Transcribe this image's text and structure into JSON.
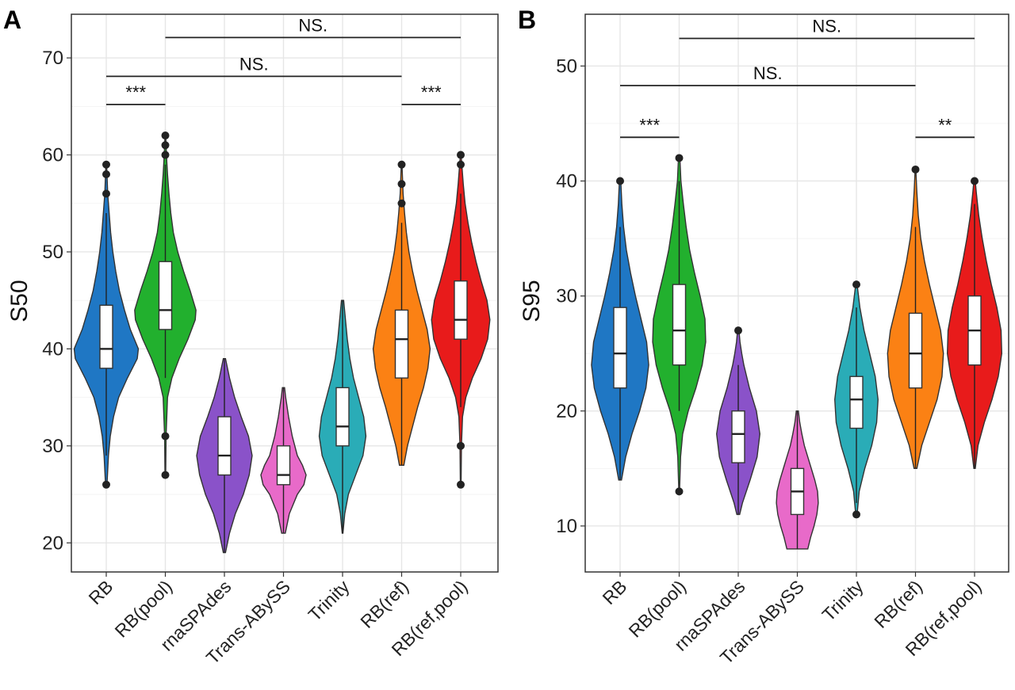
{
  "chart_data": [
    {
      "type": "violin",
      "panel_label": "A",
      "title": "",
      "xlabel": "",
      "ylabel": "S50",
      "ylim": [
        17,
        74.5
      ],
      "yticks": [
        20,
        30,
        40,
        50,
        60,
        70
      ],
      "grid": true,
      "categories": [
        "RB",
        "RB(pool)",
        "rnaSPAdes",
        "Trans-ABySS",
        "Trinity",
        "RB(ref)",
        "RB(ref,pool)"
      ],
      "colors": [
        "#1f77c4",
        "#22b02e",
        "#8a52c9",
        "#e86ac9",
        "#2aacb7",
        "#fb8114",
        "#e81b1b"
      ],
      "series": [
        {
          "min": 26,
          "max": 59,
          "q1": 38,
          "median": 40,
          "q3": 44.5,
          "whisker_low": 29,
          "whisker_high": 54,
          "outliers": [
            26,
            56,
            58,
            59
          ],
          "density": [
            [
              26,
              0.02
            ],
            [
              29,
              0.06
            ],
            [
              31,
              0.11
            ],
            [
              33,
              0.2
            ],
            [
              35,
              0.34
            ],
            [
              37,
              0.58
            ],
            [
              39,
              0.85
            ],
            [
              40,
              0.88
            ],
            [
              42,
              0.66
            ],
            [
              44,
              0.5
            ],
            [
              46,
              0.36
            ],
            [
              48,
              0.26
            ],
            [
              50,
              0.18
            ],
            [
              52,
              0.12
            ],
            [
              54,
              0.08
            ],
            [
              56,
              0.04
            ],
            [
              58,
              0.02
            ],
            [
              59,
              0.01
            ]
          ]
        },
        {
          "min": 27,
          "max": 62,
          "q1": 42,
          "median": 44,
          "q3": 49,
          "whisker_low": 37,
          "whisker_high": 59,
          "outliers": [
            27,
            31,
            60,
            61,
            62
          ],
          "density": [
            [
              27,
              0.01
            ],
            [
              31,
              0.02
            ],
            [
              35,
              0.06
            ],
            [
              37,
              0.18
            ],
            [
              39,
              0.38
            ],
            [
              41,
              0.62
            ],
            [
              43,
              0.82
            ],
            [
              44,
              0.84
            ],
            [
              46,
              0.68
            ],
            [
              48,
              0.5
            ],
            [
              50,
              0.34
            ],
            [
              52,
              0.22
            ],
            [
              54,
              0.15
            ],
            [
              56,
              0.1
            ],
            [
              58,
              0.06
            ],
            [
              60,
              0.03
            ],
            [
              62,
              0.01
            ]
          ]
        },
        {
          "min": 19,
          "max": 39,
          "q1": 27,
          "median": 29,
          "q3": 33,
          "whisker_low": 19,
          "whisker_high": 39,
          "outliers": [],
          "density": [
            [
              19,
              0.03
            ],
            [
              21,
              0.14
            ],
            [
              23,
              0.3
            ],
            [
              25,
              0.52
            ],
            [
              27,
              0.68
            ],
            [
              29,
              0.76
            ],
            [
              31,
              0.66
            ],
            [
              33,
              0.46
            ],
            [
              35,
              0.28
            ],
            [
              37,
              0.14
            ],
            [
              39,
              0.03
            ]
          ]
        },
        {
          "min": 21,
          "max": 36,
          "q1": 26,
          "median": 27,
          "q3": 30,
          "whisker_low": 21,
          "whisker_high": 36,
          "outliers": [],
          "density": [
            [
              21,
              0.05
            ],
            [
              23,
              0.16
            ],
            [
              25,
              0.38
            ],
            [
              26,
              0.56
            ],
            [
              27,
              0.62
            ],
            [
              28,
              0.52
            ],
            [
              29,
              0.38
            ],
            [
              31,
              0.24
            ],
            [
              33,
              0.14
            ],
            [
              35,
              0.06
            ],
            [
              36,
              0.03
            ]
          ]
        },
        {
          "min": 21,
          "max": 45,
          "q1": 30,
          "median": 32,
          "q3": 36,
          "whisker_low": 21,
          "whisker_high": 45,
          "outliers": [],
          "density": [
            [
              21,
              0.01
            ],
            [
              23,
              0.06
            ],
            [
              25,
              0.16
            ],
            [
              27,
              0.36
            ],
            [
              29,
              0.56
            ],
            [
              31,
              0.64
            ],
            [
              33,
              0.58
            ],
            [
              35,
              0.44
            ],
            [
              37,
              0.3
            ],
            [
              39,
              0.2
            ],
            [
              41,
              0.13
            ],
            [
              43,
              0.08
            ],
            [
              45,
              0.03
            ]
          ]
        },
        {
          "min": 28,
          "max": 59,
          "q1": 37,
          "median": 41,
          "q3": 44,
          "whisker_low": 28,
          "whisker_high": 53,
          "outliers": [
            55,
            57,
            59
          ],
          "density": [
            [
              28,
              0.06
            ],
            [
              30,
              0.16
            ],
            [
              32,
              0.3
            ],
            [
              34,
              0.44
            ],
            [
              36,
              0.6
            ],
            [
              38,
              0.72
            ],
            [
              40,
              0.78
            ],
            [
              42,
              0.7
            ],
            [
              44,
              0.56
            ],
            [
              46,
              0.42
            ],
            [
              48,
              0.3
            ],
            [
              50,
              0.2
            ],
            [
              52,
              0.13
            ],
            [
              54,
              0.08
            ],
            [
              56,
              0.04
            ],
            [
              58,
              0.02
            ],
            [
              59,
              0.01
            ]
          ]
        },
        {
          "min": 26,
          "max": 60,
          "q1": 41,
          "median": 43,
          "q3": 47,
          "whisker_low": 34,
          "whisker_high": 56,
          "outliers": [
            26,
            30,
            59,
            60
          ],
          "density": [
            [
              26,
              0.01
            ],
            [
              30,
              0.02
            ],
            [
              33,
              0.05
            ],
            [
              35,
              0.14
            ],
            [
              37,
              0.32
            ],
            [
              39,
              0.56
            ],
            [
              41,
              0.74
            ],
            [
              43,
              0.8
            ],
            [
              45,
              0.72
            ],
            [
              47,
              0.56
            ],
            [
              49,
              0.42
            ],
            [
              51,
              0.3
            ],
            [
              53,
              0.2
            ],
            [
              55,
              0.12
            ],
            [
              57,
              0.07
            ],
            [
              59,
              0.03
            ],
            [
              60,
              0.01
            ]
          ]
        }
      ],
      "significance": [
        {
          "from": "RB(pool)",
          "to": "RB(ref,pool)",
          "y": 72.1,
          "label": "NS."
        },
        {
          "from": "RB",
          "to": "RB(ref)",
          "y": 68.1,
          "label": "NS."
        },
        {
          "from": "RB",
          "to": "RB(pool)",
          "y": 65.2,
          "label": "***"
        },
        {
          "from": "RB(ref)",
          "to": "RB(ref,pool)",
          "y": 65.2,
          "label": "***"
        }
      ]
    },
    {
      "type": "violin",
      "panel_label": "B",
      "title": "",
      "xlabel": "",
      "ylabel": "S95",
      "ylim": [
        6,
        54.5
      ],
      "yticks": [
        10,
        20,
        30,
        40,
        50
      ],
      "grid": true,
      "categories": [
        "RB",
        "RB(pool)",
        "rnaSPAdes",
        "Trans-ABySS",
        "Trinity",
        "RB(ref)",
        "RB(ref,pool)"
      ],
      "colors": [
        "#1f77c4",
        "#22b02e",
        "#8a52c9",
        "#e86ac9",
        "#2aacb7",
        "#fb8114",
        "#e81b1b"
      ],
      "series": [
        {
          "min": 14,
          "max": 40,
          "q1": 22,
          "median": 25,
          "q3": 29,
          "whisker_low": 14,
          "whisker_high": 36,
          "outliers": [
            40
          ],
          "density": [
            [
              14,
              0.04
            ],
            [
              16,
              0.16
            ],
            [
              18,
              0.34
            ],
            [
              20,
              0.56
            ],
            [
              22,
              0.74
            ],
            [
              24,
              0.82
            ],
            [
              26,
              0.76
            ],
            [
              28,
              0.6
            ],
            [
              30,
              0.44
            ],
            [
              32,
              0.3
            ],
            [
              34,
              0.18
            ],
            [
              36,
              0.1
            ],
            [
              38,
              0.05
            ],
            [
              40,
              0.02
            ]
          ]
        },
        {
          "min": 13,
          "max": 42,
          "q1": 24,
          "median": 27,
          "q3": 31,
          "whisker_low": 20,
          "whisker_high": 40,
          "outliers": [
            13,
            42
          ],
          "density": [
            [
              13,
              0.01
            ],
            [
              16,
              0.04
            ],
            [
              18,
              0.1
            ],
            [
              20,
              0.26
            ],
            [
              22,
              0.48
            ],
            [
              24,
              0.66
            ],
            [
              26,
              0.76
            ],
            [
              28,
              0.74
            ],
            [
              30,
              0.6
            ],
            [
              32,
              0.44
            ],
            [
              34,
              0.3
            ],
            [
              36,
              0.2
            ],
            [
              38,
              0.12
            ],
            [
              40,
              0.05
            ],
            [
              42,
              0.02
            ]
          ]
        },
        {
          "min": 11,
          "max": 27,
          "q1": 15.5,
          "median": 18,
          "q3": 20,
          "whisker_low": 11,
          "whisker_high": 24,
          "outliers": [
            27
          ],
          "density": [
            [
              11,
              0.04
            ],
            [
              12,
              0.12
            ],
            [
              14,
              0.34
            ],
            [
              16,
              0.54
            ],
            [
              18,
              0.62
            ],
            [
              20,
              0.52
            ],
            [
              22,
              0.32
            ],
            [
              24,
              0.16
            ],
            [
              25,
              0.1
            ],
            [
              26,
              0.05
            ],
            [
              27,
              0.02
            ]
          ]
        },
        {
          "min": 8,
          "max": 20,
          "q1": 11,
          "median": 13,
          "q3": 15,
          "whisker_low": 8,
          "whisker_high": 20,
          "outliers": [],
          "density": [
            [
              8,
              0.3
            ],
            [
              9,
              0.38
            ],
            [
              10,
              0.48
            ],
            [
              11,
              0.56
            ],
            [
              12,
              0.6
            ],
            [
              13,
              0.58
            ],
            [
              14,
              0.5
            ],
            [
              15,
              0.4
            ],
            [
              16,
              0.3
            ],
            [
              17,
              0.2
            ],
            [
              18,
              0.13
            ],
            [
              19,
              0.07
            ],
            [
              20,
              0.03
            ]
          ]
        },
        {
          "min": 11,
          "max": 31,
          "q1": 18.5,
          "median": 21,
          "q3": 23,
          "whisker_low": 12,
          "whisker_high": 29,
          "outliers": [
            11,
            31
          ],
          "density": [
            [
              11,
              0.02
            ],
            [
              13,
              0.08
            ],
            [
              15,
              0.24
            ],
            [
              17,
              0.44
            ],
            [
              19,
              0.58
            ],
            [
              21,
              0.62
            ],
            [
              23,
              0.54
            ],
            [
              25,
              0.38
            ],
            [
              27,
              0.22
            ],
            [
              29,
              0.1
            ],
            [
              31,
              0.02
            ]
          ]
        },
        {
          "min": 15,
          "max": 41,
          "q1": 22,
          "median": 25,
          "q3": 28.5,
          "whisker_low": 15,
          "whisker_high": 36,
          "outliers": [
            41
          ],
          "density": [
            [
              15,
              0.04
            ],
            [
              17,
              0.18
            ],
            [
              19,
              0.4
            ],
            [
              21,
              0.62
            ],
            [
              23,
              0.76
            ],
            [
              25,
              0.8
            ],
            [
              27,
              0.72
            ],
            [
              29,
              0.56
            ],
            [
              31,
              0.4
            ],
            [
              33,
              0.26
            ],
            [
              35,
              0.15
            ],
            [
              37,
              0.08
            ],
            [
              39,
              0.04
            ],
            [
              41,
              0.01
            ]
          ]
        },
        {
          "min": 15,
          "max": 40,
          "q1": 24,
          "median": 27,
          "q3": 30,
          "whisker_low": 15,
          "whisker_high": 38,
          "outliers": [
            40
          ],
          "density": [
            [
              15,
              0.02
            ],
            [
              17,
              0.1
            ],
            [
              19,
              0.28
            ],
            [
              21,
              0.5
            ],
            [
              23,
              0.68
            ],
            [
              25,
              0.78
            ],
            [
              27,
              0.76
            ],
            [
              29,
              0.64
            ],
            [
              31,
              0.48
            ],
            [
              33,
              0.34
            ],
            [
              35,
              0.22
            ],
            [
              37,
              0.12
            ],
            [
              39,
              0.05
            ],
            [
              40,
              0.02
            ]
          ]
        }
      ],
      "significance": [
        {
          "from": "RB(pool)",
          "to": "RB(ref,pool)",
          "y": 52.4,
          "label": "NS."
        },
        {
          "from": "RB",
          "to": "RB(ref)",
          "y": 48.3,
          "label": "NS."
        },
        {
          "from": "RB",
          "to": "RB(pool)",
          "y": 43.8,
          "label": "***"
        },
        {
          "from": "RB(ref)",
          "to": "RB(ref,pool)",
          "y": 43.8,
          "label": "**"
        }
      ]
    }
  ]
}
